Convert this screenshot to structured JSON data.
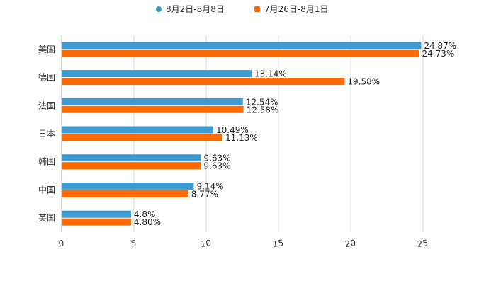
{
  "chart_data": {
    "type": "bar",
    "orientation": "horizontal",
    "categories": [
      "美国",
      "德国",
      "法国",
      "日本",
      "韩国",
      "中国",
      "英国"
    ],
    "series": [
      {
        "name": "8月2日-8月8日",
        "color": "#3d9bd1",
        "values": [
          24.87,
          13.14,
          12.54,
          10.49,
          9.63,
          9.14,
          4.8
        ],
        "labels": [
          "24.87%",
          "13.14%",
          "12.54%",
          "10.49%",
          "9.63%",
          "9.14%",
          "4.8%"
        ]
      },
      {
        "name": "7月26日-8月1日",
        "color": "#ff6a00",
        "values": [
          24.73,
          19.58,
          12.58,
          11.13,
          9.63,
          8.77,
          4.8
        ],
        "labels": [
          "24.73%",
          "19.58%",
          "12.58%",
          "11.13%",
          "9.63%",
          "8.77%",
          "4.80%"
        ]
      }
    ],
    "xlim": [
      0,
      25
    ],
    "xticks": [
      "0",
      "5",
      "10",
      "15",
      "20",
      "25"
    ],
    "grid": "vertical",
    "legend_position": "top-center",
    "title": "",
    "xlabel": "",
    "ylabel": ""
  }
}
